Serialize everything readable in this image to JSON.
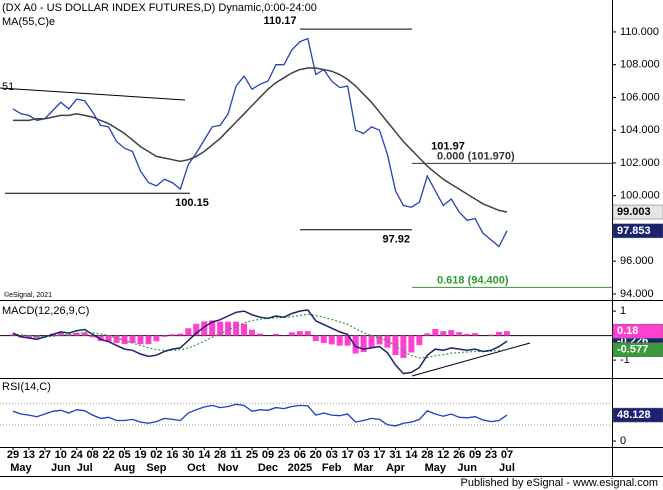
{
  "chart_data": [
    {
      "type": "line",
      "title": "(DX A0 - US DOLLAR INDEX FUTURES,D) Dynamic,0:00-24:00",
      "categories": [
        "29",
        null,
        "13",
        null,
        "27",
        null,
        "10",
        null,
        "24",
        null,
        "08",
        null,
        "22",
        null,
        "05",
        null,
        "19",
        null,
        "02",
        null,
        "16",
        null,
        "30",
        null,
        "14",
        null,
        "28",
        null,
        "11",
        null,
        "25",
        null,
        "09",
        null,
        "23",
        null,
        "06",
        null,
        "20",
        null,
        "03",
        null,
        "17",
        null,
        "03",
        null,
        "17",
        null,
        "31",
        null,
        "14",
        null,
        "28",
        null,
        "12",
        null,
        "26",
        null,
        "09",
        null,
        "23",
        null,
        "07"
      ],
      "month_labels": [
        null,
        "May",
        null,
        null,
        null,
        null,
        "Jun",
        null,
        null,
        "Jul",
        null,
        null,
        null,
        null,
        "Aug",
        null,
        null,
        null,
        "Sep",
        null,
        null,
        null,
        null,
        "Oct",
        null,
        null,
        null,
        "Nov",
        null,
        null,
        null,
        null,
        "Dec",
        null,
        null,
        null,
        "2025",
        null,
        null,
        null,
        "Feb",
        null,
        null,
        null,
        "Mar",
        null,
        null,
        null,
        "Apr",
        null,
        null,
        null,
        null,
        "May",
        null,
        null,
        null,
        "Jun",
        null,
        null,
        null,
        null,
        "Jul"
      ],
      "series": [
        {
          "color": "#2342b8",
          "values": [
            105.3,
            105.0,
            104.9,
            104.6,
            104.7,
            105.2,
            105.7,
            105.3,
            105.9,
            105.8,
            105.1,
            104.3,
            104.2,
            103.3,
            102.9,
            102.7,
            101.5,
            100.8,
            100.6,
            101.0,
            100.8,
            100.4,
            101.9,
            102.6,
            103.4,
            104.2,
            104.3,
            105.0,
            106.7,
            107.3,
            106.5,
            106.8,
            107.0,
            108.0,
            108.0,
            108.9,
            109.4,
            109.6,
            107.4,
            107.7,
            107.0,
            106.6,
            106.7,
            104.0,
            103.8,
            104.2,
            104.0,
            102.5,
            100.3,
            99.4,
            99.3,
            99.6,
            101.2,
            100.3,
            99.4,
            99.8,
            99.0,
            98.5,
            98.6,
            97.7,
            97.3,
            96.9,
            97.853
          ]
        },
        {
          "name": "MA(55,C)e",
          "color": "#404040",
          "values": [
            104.6,
            104.6,
            104.6,
            104.7,
            104.7,
            104.8,
            104.9,
            104.9,
            105.0,
            104.9,
            104.8,
            104.6,
            104.4,
            104.1,
            103.8,
            103.4,
            103.0,
            102.7,
            102.4,
            102.3,
            102.2,
            102.1,
            102.2,
            102.4,
            102.7,
            103.1,
            103.5,
            104.0,
            104.5,
            105.0,
            105.5,
            106.0,
            106.5,
            106.9,
            107.2,
            107.5,
            107.7,
            107.8,
            107.8,
            107.7,
            107.6,
            107.4,
            107.1,
            106.7,
            106.2,
            105.7,
            105.1,
            104.5,
            103.9,
            103.3,
            102.8,
            102.3,
            101.8,
            101.4,
            101.0,
            100.7,
            100.4,
            100.1,
            99.8,
            99.5,
            99.3,
            99.1,
            99.003
          ]
        }
      ],
      "ylim": [
        93.63,
        111.95
      ],
      "yticks": [
        {
          "value": 110,
          "label": "110.000"
        },
        {
          "value": 108,
          "label": "108.000"
        },
        {
          "value": 106,
          "label": "106.000"
        },
        {
          "value": 104,
          "label": "104.000"
        },
        {
          "value": 102,
          "label": "102.000"
        },
        {
          "value": 100,
          "label": "100.000"
        },
        {
          "value": 98,
          "label": "98.000"
        },
        {
          "value": 96,
          "label": "96.000"
        },
        {
          "value": 94,
          "label": "94.000"
        }
      ],
      "levels": [
        110.17,
        100.15,
        97.92,
        101.97
      ],
      "fib_levels": [
        {
          "value": 101.97,
          "label": "0.000 (101.970)",
          "color": "#333333"
        },
        {
          "value": 94.4,
          "label": "0.618 (94.400)",
          "color": "#2e9a2e"
        }
      ],
      "cut_label": "51",
      "copyright": "©eSignal, 2021"
    },
    {
      "type": "macd",
      "name": "MACD(12,26,9,C)",
      "series": [
        {
          "color": "#1a2370",
          "values": [
            0.1,
            -0.05,
            -0.1,
            -0.15,
            -0.05,
            0.05,
            0.15,
            0.1,
            0.2,
            0.25,
            0.05,
            -0.15,
            -0.25,
            -0.4,
            -0.55,
            -0.6,
            -0.75,
            -0.85,
            -0.8,
            -0.65,
            -0.55,
            -0.5,
            -0.2,
            0.1,
            0.35,
            0.55,
            0.65,
            0.8,
            0.95,
            1.0,
            0.85,
            0.75,
            0.7,
            0.8,
            0.75,
            0.9,
            1.0,
            1.05,
            0.6,
            0.45,
            0.3,
            0.15,
            0.05,
            -0.45,
            -0.55,
            -0.5,
            -0.45,
            -0.7,
            -1.2,
            -1.55,
            -1.5,
            -1.3,
            -0.8,
            -0.55,
            -0.6,
            -0.5,
            -0.55,
            -0.6,
            -0.55,
            -0.65,
            -0.6,
            -0.45,
            -0.226
          ]
        },
        {
          "color": "#3a9a3a",
          "values": [
            0.05,
            0.03,
            0.0,
            -0.05,
            -0.06,
            -0.03,
            0.02,
            0.05,
            0.09,
            0.13,
            0.12,
            0.07,
            0.0,
            -0.1,
            -0.2,
            -0.3,
            -0.4,
            -0.5,
            -0.57,
            -0.6,
            -0.6,
            -0.58,
            -0.5,
            -0.38,
            -0.23,
            -0.07,
            0.08,
            0.23,
            0.38,
            0.52,
            0.61,
            0.67,
            0.7,
            0.73,
            0.74,
            0.77,
            0.82,
            0.87,
            0.82,
            0.75,
            0.66,
            0.56,
            0.46,
            0.28,
            0.12,
            0.0,
            -0.09,
            -0.21,
            -0.41,
            -0.64,
            -0.81,
            -0.91,
            -0.89,
            -0.82,
            -0.78,
            -0.72,
            -0.69,
            -0.67,
            -0.65,
            -0.65,
            -0.64,
            -0.6,
            -0.577
          ]
        },
        {
          "color": "#ff3fd0",
          "values": [
            0.05,
            -0.08,
            -0.1,
            -0.1,
            0.01,
            0.08,
            0.13,
            0.05,
            0.11,
            0.12,
            -0.07,
            -0.22,
            -0.25,
            -0.3,
            -0.35,
            -0.3,
            -0.35,
            -0.35,
            -0.23,
            -0.05,
            0.05,
            0.08,
            0.3,
            0.48,
            0.58,
            0.62,
            0.57,
            0.57,
            0.57,
            0.48,
            0.24,
            0.08,
            0.0,
            0.07,
            0.01,
            0.13,
            0.18,
            0.18,
            -0.22,
            -0.3,
            -0.36,
            -0.41,
            -0.41,
            -0.73,
            -0.67,
            -0.5,
            -0.36,
            -0.49,
            -0.79,
            -0.91,
            -0.69,
            -0.39,
            0.09,
            0.27,
            0.18,
            0.22,
            0.14,
            0.07,
            0.1,
            0.0,
            0.04,
            0.15,
            0.18
          ]
        }
      ],
      "ylim": [
        -1.73,
        1.33
      ],
      "yticks": [
        1,
        -1
      ]
    },
    {
      "type": "line",
      "name": "RSI(14,C)",
      "series": [
        {
          "color": "#1d3fc4",
          "values": [
            55,
            50,
            48,
            45,
            50,
            55,
            57,
            52,
            58,
            56,
            48,
            42,
            44,
            38,
            38,
            40,
            35,
            33,
            36,
            42,
            40,
            38,
            52,
            58,
            63,
            66,
            62,
            64,
            68,
            66,
            55,
            58,
            57,
            62,
            60,
            64,
            66,
            65,
            48,
            52,
            48,
            47,
            50,
            35,
            38,
            42,
            40,
            30,
            28,
            33,
            35,
            40,
            56,
            50,
            46,
            50,
            44,
            43,
            45,
            39,
            36,
            38,
            48.128
          ]
        }
      ],
      "ylim": [
        -11,
        113
      ],
      "yticks": [
        50,
        0
      ],
      "guides": [
        70,
        30
      ]
    }
  ],
  "footer": "Published by eSignal - www.esignal.com"
}
